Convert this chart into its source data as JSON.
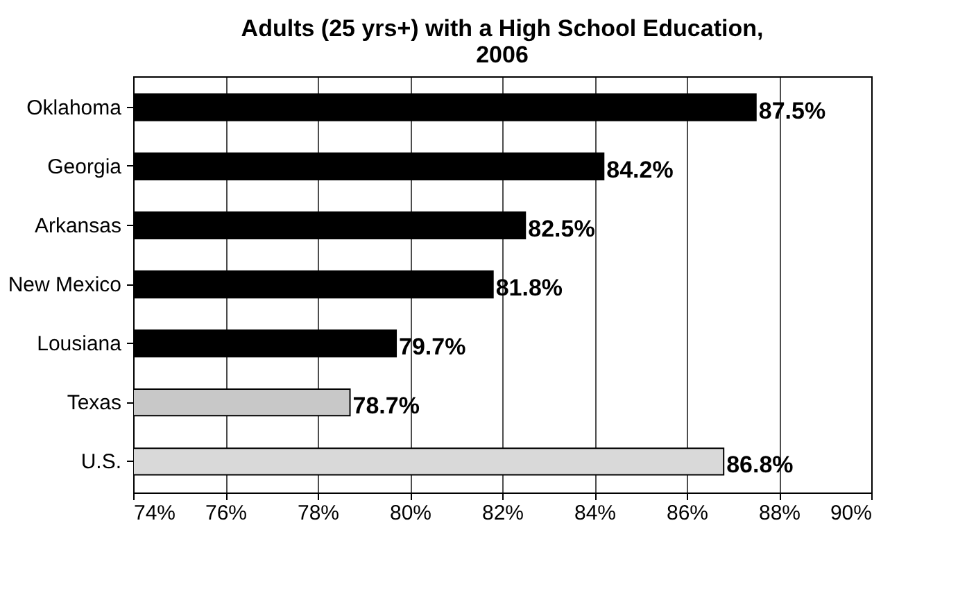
{
  "chart_data": {
    "type": "bar",
    "orientation": "horizontal",
    "title": [
      "Adults (25 yrs+) with a High School Education,",
      "2006"
    ],
    "categories": [
      "Oklahoma",
      "Georgia",
      "Arkansas",
      "New Mexico",
      "Lousiana",
      "Texas",
      "U.S."
    ],
    "values": [
      87.5,
      84.2,
      82.5,
      81.8,
      79.7,
      78.7,
      86.8
    ],
    "colors": [
      "#000000",
      "#000000",
      "#000000",
      "#000000",
      "#000000",
      "#c8c8c8",
      "#d9d9d9"
    ],
    "value_labels": [
      "87.5%",
      "84.2%",
      "82.5%",
      "81.8%",
      "79.7%",
      "78.7%",
      "86.8%"
    ],
    "xlim": [
      74,
      90
    ],
    "xticks": [
      {
        "value": 74,
        "label": "74%"
      },
      {
        "value": 76,
        "label": "76%"
      },
      {
        "value": 78,
        "label": "78%"
      },
      {
        "value": 80,
        "label": "80%"
      },
      {
        "value": 82,
        "label": "82%"
      },
      {
        "value": 84,
        "label": "84%"
      },
      {
        "value": 86,
        "label": "86%"
      },
      {
        "value": 88,
        "label": "88%"
      },
      {
        "value": 90,
        "label": "90%"
      }
    ],
    "grid": "x"
  }
}
